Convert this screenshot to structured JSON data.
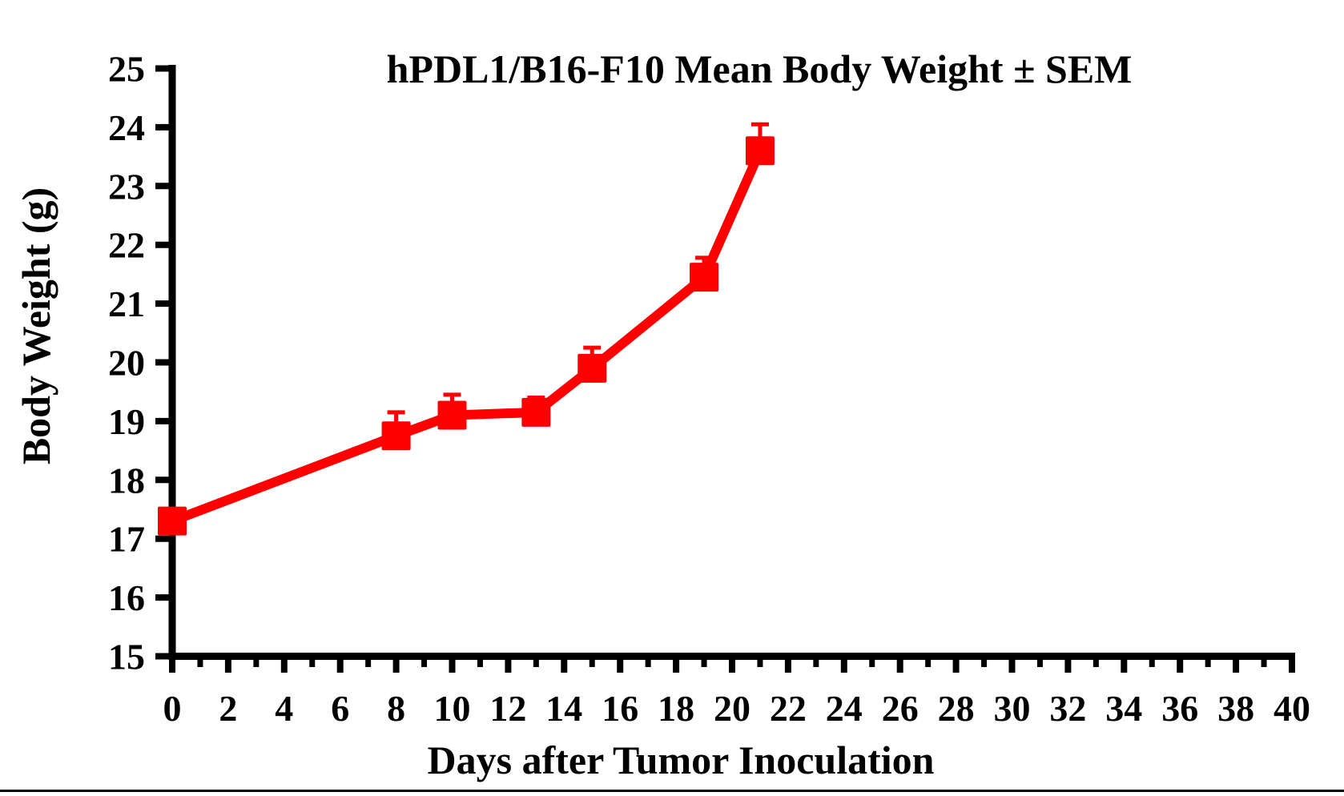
{
  "page": {
    "background_color": "#FFFFFF",
    "bottom_border_color": "#000000"
  },
  "chart_data": {
    "type": "line",
    "title": "hPDL1/B16-F10 Mean Body Weight ± SEM",
    "xlabel": "Days after Tumor Inoculation",
    "ylabel": "Body Weight (g)",
    "xlim": [
      0,
      40
    ],
    "ylim": [
      15,
      25
    ],
    "x_tick_labels": [
      "0",
      "2",
      "4",
      "6",
      "8",
      "10",
      "12",
      "14",
      "16",
      "18",
      "20",
      "22",
      "24",
      "26",
      "28",
      "30",
      "32",
      "34",
      "36",
      "38",
      "40"
    ],
    "x_minor_tick_step": 1,
    "y_tick_labels": [
      "15",
      "16",
      "17",
      "18",
      "19",
      "20",
      "21",
      "22",
      "23",
      "24",
      "25"
    ],
    "grid": false,
    "legend": "none",
    "axis_color": "#000000",
    "series": [
      {
        "name": "hPDL1/B16-F10",
        "color": "#FF0000",
        "marker": "filled-square",
        "error_bars": "upper SEM only",
        "x_days": [
          0,
          8,
          10,
          13,
          15,
          19,
          21
        ],
        "mean_body_weight_g": [
          17.3,
          18.75,
          19.1,
          19.15,
          19.9,
          21.45,
          23.6
        ],
        "sem_g": [
          0,
          0.4,
          0.35,
          0.25,
          0.35,
          0.33,
          0.45
        ]
      }
    ]
  }
}
